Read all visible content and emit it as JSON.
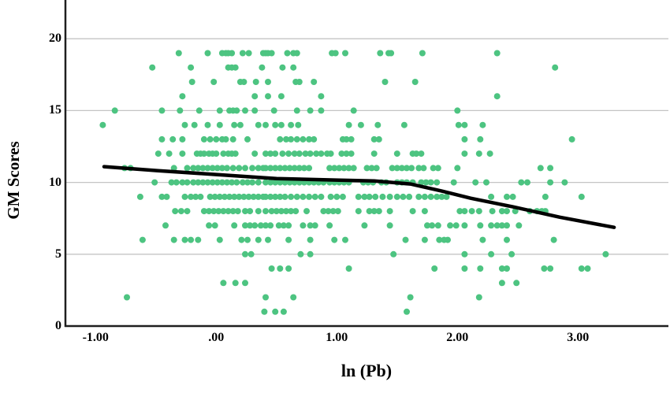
{
  "chart_data": {
    "type": "scatter",
    "title": "",
    "xlabel": "ln (Pb)",
    "ylabel": "GM Scores",
    "xlim": [
      -1.25,
      3.75
    ],
    "ylim": [
      0,
      22.7
    ],
    "grid": "horizontal-only",
    "legend": "none",
    "x_ticks": [
      {
        "label": "-1.00",
        "value": -1
      },
      {
        "label": ".00",
        "value": 0
      },
      {
        "label": "1.00",
        "value": 1
      },
      {
        "label": "2.00",
        "value": 2
      },
      {
        "label": "3.00",
        "value": 3
      }
    ],
    "y_ticks": [
      {
        "label": "0",
        "value": 0
      },
      {
        "label": "5",
        "value": 5
      },
      {
        "label": "10",
        "value": 10
      },
      {
        "label": "15",
        "value": 15
      },
      {
        "label": "20",
        "value": 20
      }
    ],
    "point_radius": 4,
    "colors": {
      "point_fill": "#4DC481",
      "trend": "#000000",
      "grid": "#c4c4c4",
      "axis": "#1f1f1f",
      "background": "#ffffff",
      "text": "#000000"
    },
    "points_by_score": {
      "19": [
        -0.31,
        -0.07,
        0.05,
        0.08,
        0.1,
        0.13,
        0.22,
        0.27,
        0.39,
        0.41,
        0.43,
        0.46,
        0.59,
        0.64,
        0.67,
        0.96,
        0.99,
        1.07,
        1.36,
        1.43,
        1.45,
        1.71,
        2.33
      ],
      "18": [
        -0.53,
        -0.21,
        0.1,
        0.13,
        0.16,
        0.38,
        0.55,
        0.64,
        2.81
      ],
      "17": [
        -0.2,
        -0.02,
        0.2,
        0.23,
        0.33,
        0.43,
        0.66,
        0.69,
        0.81,
        1.4,
        1.65
      ],
      "16": [
        -0.28,
        0.32,
        0.43,
        0.54,
        0.87,
        2.33
      ],
      "15": [
        -0.84,
        -0.45,
        -0.3,
        -0.14,
        0.03,
        0.11,
        0.14,
        0.17,
        0.24,
        0.32,
        0.48,
        0.67,
        0.78,
        0.87,
        1.14,
        2.0
      ],
      "14": [
        -0.94,
        -0.26,
        -0.18,
        -0.07,
        0.03,
        0.15,
        0.2,
        0.35,
        0.41,
        0.49,
        0.54,
        0.62,
        0.68,
        1.1,
        1.2,
        1.34,
        1.56,
        2.01,
        2.06,
        2.21
      ],
      "13": [
        -0.45,
        -0.36,
        -0.28,
        -0.1,
        -0.05,
        0.0,
        0.05,
        0.08,
        0.14,
        0.26,
        0.53,
        0.58,
        0.62,
        0.67,
        0.72,
        0.77,
        0.81,
        1.05,
        1.08,
        1.12,
        1.31,
        1.35,
        2.06,
        2.19,
        2.95
      ],
      "12": [
        -0.48,
        -0.39,
        -0.28,
        -0.16,
        -0.13,
        -0.1,
        -0.06,
        -0.03,
        0.0,
        0.06,
        0.1,
        0.13,
        0.16,
        0.32,
        0.41,
        0.45,
        0.49,
        0.55,
        0.6,
        0.65,
        0.69,
        0.74,
        0.78,
        0.83,
        0.87,
        0.92,
        0.95,
        1.04,
        1.08,
        1.12,
        1.31,
        1.5,
        1.63,
        1.66,
        1.7,
        2.06,
        2.18,
        2.27
      ],
      "11": [
        -0.76,
        -0.71,
        -0.35,
        -0.24,
        -0.19,
        -0.15,
        -0.11,
        -0.07,
        -0.03,
        0.01,
        0.05,
        0.09,
        0.14,
        0.19,
        0.24,
        0.3,
        0.35,
        0.39,
        0.41,
        0.45,
        0.49,
        0.53,
        0.57,
        0.61,
        0.65,
        0.69,
        0.73,
        0.77,
        0.94,
        0.98,
        1.02,
        1.06,
        1.1,
        1.14,
        1.25,
        1.29,
        1.33,
        1.46,
        1.5,
        1.54,
        1.58,
        1.62,
        1.68,
        1.72,
        1.8,
        1.84,
        2.0,
        2.69,
        2.77
      ],
      "10": [
        -0.51,
        -0.37,
        -0.33,
        -0.28,
        -0.24,
        -0.19,
        -0.15,
        -0.11,
        -0.07,
        -0.03,
        0.01,
        0.05,
        0.09,
        0.13,
        0.17,
        0.22,
        0.26,
        0.3,
        0.35,
        0.41,
        0.45,
        0.49,
        0.53,
        0.57,
        0.61,
        0.65,
        0.69,
        0.73,
        0.77,
        0.81,
        0.85,
        0.89,
        0.94,
        0.98,
        1.02,
        1.06,
        1.1,
        1.22,
        1.26,
        1.3,
        1.37,
        1.41,
        1.5,
        1.54,
        1.58,
        1.63,
        1.7,
        1.74,
        1.78,
        1.83,
        1.97,
        2.15,
        2.24,
        2.53,
        2.58,
        2.77,
        2.89
      ],
      "9": [
        -0.63,
        -0.45,
        -0.41,
        -0.26,
        -0.21,
        -0.17,
        -0.13,
        -0.05,
        -0.01,
        0.03,
        0.07,
        0.11,
        0.15,
        0.19,
        0.23,
        0.27,
        0.31,
        0.35,
        0.39,
        0.41,
        0.45,
        0.49,
        0.53,
        0.57,
        0.62,
        0.67,
        0.72,
        0.77,
        0.82,
        0.87,
        0.95,
        1.0,
        1.05,
        1.18,
        1.23,
        1.27,
        1.32,
        1.38,
        1.44,
        1.5,
        1.55,
        1.6,
        1.68,
        1.73,
        1.78,
        1.83,
        1.87,
        1.91,
        2.28,
        2.41,
        2.46,
        2.73,
        3.03
      ],
      "8": [
        -0.34,
        -0.29,
        -0.24,
        -0.1,
        -0.06,
        -0.02,
        0.02,
        0.06,
        0.1,
        0.14,
        0.18,
        0.24,
        0.28,
        0.35,
        0.41,
        0.46,
        0.5,
        0.54,
        0.58,
        0.62,
        0.66,
        0.75,
        0.89,
        0.93,
        0.97,
        1.01,
        1.18,
        1.27,
        1.31,
        1.35,
        1.44,
        1.63,
        1.73,
        2.02,
        2.06,
        2.12,
        2.18,
        2.29,
        2.37,
        2.41,
        2.48,
        2.6,
        2.66,
        2.7,
        2.73
      ],
      "7": [
        -0.42,
        -0.06,
        -0.01,
        0.15,
        0.24,
        0.28,
        0.32,
        0.37,
        0.41,
        0.45,
        0.52,
        0.56,
        0.6,
        0.72,
        0.78,
        0.82,
        0.94,
        1.23,
        1.44,
        1.75,
        1.79,
        1.84,
        1.94,
        1.99,
        2.06,
        2.19,
        2.28,
        2.33,
        2.37,
        2.41,
        2.51
      ],
      "6": [
        -0.61,
        -0.35,
        -0.26,
        -0.21,
        -0.15,
        0.03,
        0.21,
        0.26,
        0.35,
        0.43,
        0.6,
        0.78,
        0.98,
        1.07,
        1.57,
        1.73,
        1.85,
        1.89,
        1.92,
        2.21,
        2.41,
        2.8
      ],
      "5": [
        0.24,
        0.29,
        0.7,
        0.78,
        1.47,
        2.06,
        2.28,
        2.45,
        3.23
      ],
      "4": [
        0.46,
        0.53,
        0.6,
        1.1,
        1.81,
        2.06,
        2.19,
        2.37,
        2.41,
        2.72,
        2.77,
        3.03,
        3.08
      ],
      "3": [
        0.06,
        0.16,
        0.24,
        2.37,
        2.49
      ],
      "2": [
        -0.74,
        0.41,
        0.64,
        1.61,
        2.18
      ],
      "1": [
        0.4,
        0.49,
        0.56,
        1.58
      ]
    },
    "trend_line": {
      "type": "loess-fit",
      "width": 4.5,
      "points": [
        [
          -0.93,
          11.1
        ],
        [
          -0.48,
          10.82
        ],
        [
          0.0,
          10.55
        ],
        [
          0.5,
          10.27
        ],
        [
          1.02,
          10.16
        ],
        [
          1.31,
          10.1
        ],
        [
          1.61,
          9.89
        ],
        [
          1.87,
          9.4
        ],
        [
          2.11,
          8.9
        ],
        [
          2.46,
          8.3
        ],
        [
          2.85,
          7.58
        ],
        [
          3.3,
          6.87
        ]
      ]
    }
  }
}
